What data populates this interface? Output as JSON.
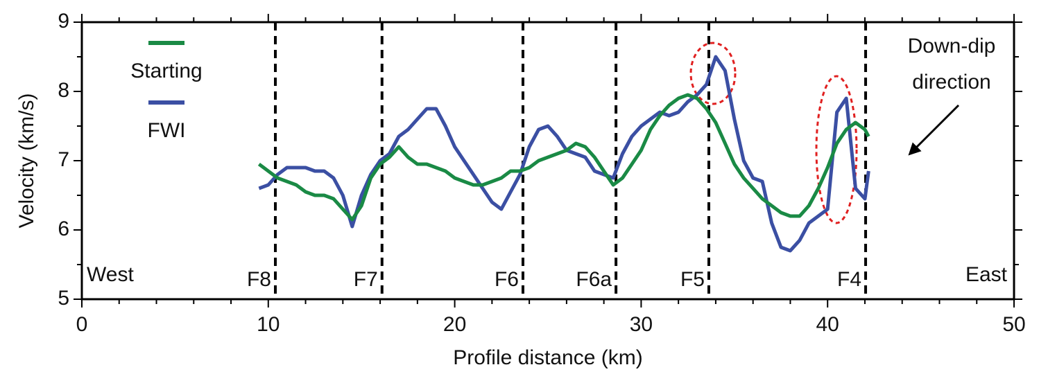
{
  "chart_data": {
    "type": "line",
    "xlabel": "Profile distance (km)",
    "ylabel": "Velocity (km/s)",
    "xlim": [
      0,
      50
    ],
    "ylim": [
      5,
      9
    ],
    "xticks": [
      0,
      10,
      20,
      30,
      40,
      50
    ],
    "yticks": [
      5,
      6,
      7,
      8,
      9
    ],
    "xticks_minor": [
      2,
      4,
      6,
      8,
      12,
      14,
      16,
      18,
      22,
      24,
      26,
      28,
      32,
      34,
      36,
      38,
      42,
      44,
      46,
      48
    ],
    "yticks_minor": [
      5.5,
      6.5,
      7.5,
      8.5
    ],
    "legend": "upper left",
    "x": [
      9.5,
      10,
      10.5,
      11,
      11.5,
      12,
      12.5,
      13,
      13.5,
      14,
      14.5,
      15,
      15.5,
      16,
      16.5,
      17,
      17.5,
      18,
      18.5,
      19,
      19.5,
      20,
      20.5,
      21,
      21.5,
      22,
      22.5,
      23,
      23.5,
      24,
      24.5,
      25,
      25.5,
      26,
      26.5,
      27,
      27.5,
      28,
      28.5,
      29,
      29.5,
      30,
      30.5,
      31,
      31.5,
      32,
      32.5,
      33,
      33.5,
      34,
      34.5,
      35,
      35.5,
      36,
      36.5,
      37,
      37.5,
      38,
      38.5,
      39,
      39.5,
      40,
      40.5,
      41,
      41.5,
      42,
      42.2
    ],
    "series": [
      {
        "name": "Starting",
        "color": "#1a8a45",
        "values": [
          6.95,
          6.85,
          6.75,
          6.7,
          6.65,
          6.55,
          6.5,
          6.5,
          6.45,
          6.3,
          6.15,
          6.35,
          6.75,
          6.95,
          7.05,
          7.2,
          7.05,
          6.95,
          6.95,
          6.9,
          6.85,
          6.75,
          6.7,
          6.65,
          6.65,
          6.7,
          6.75,
          6.85,
          6.85,
          6.9,
          7.0,
          7.05,
          7.1,
          7.15,
          7.25,
          7.2,
          7.05,
          6.85,
          6.65,
          6.75,
          6.95,
          7.15,
          7.45,
          7.65,
          7.8,
          7.9,
          7.95,
          7.9,
          7.75,
          7.55,
          7.25,
          6.95,
          6.75,
          6.6,
          6.45,
          6.35,
          6.25,
          6.2,
          6.2,
          6.35,
          6.6,
          6.9,
          7.25,
          7.45,
          7.55,
          7.45,
          7.35
        ]
      },
      {
        "name": "FWI",
        "color": "#3b4fa3",
        "values": [
          6.6,
          6.65,
          6.8,
          6.9,
          6.9,
          6.9,
          6.85,
          6.85,
          6.75,
          6.5,
          6.05,
          6.5,
          6.8,
          7.0,
          7.1,
          7.35,
          7.45,
          7.6,
          7.75,
          7.75,
          7.5,
          7.2,
          7.0,
          6.8,
          6.6,
          6.4,
          6.3,
          6.55,
          6.8,
          7.2,
          7.45,
          7.5,
          7.35,
          7.15,
          7.1,
          7.05,
          6.85,
          6.8,
          6.75,
          7.1,
          7.35,
          7.5,
          7.6,
          7.7,
          7.65,
          7.7,
          7.85,
          7.95,
          8.1,
          8.5,
          8.3,
          7.6,
          7.0,
          6.75,
          6.7,
          6.1,
          5.75,
          5.7,
          5.85,
          6.1,
          6.2,
          6.3,
          7.7,
          7.9,
          6.6,
          6.45,
          6.85
        ]
      }
    ],
    "faults": [
      {
        "label": "F8",
        "x": 10.38
      },
      {
        "label": "F7",
        "x": 16.1
      },
      {
        "label": "F6",
        "x": 23.66
      },
      {
        "label": "F6a",
        "x": 28.65
      },
      {
        "label": "F5",
        "x": 33.63
      },
      {
        "label": "F4",
        "x": 42.04
      }
    ],
    "annotations": [
      "West",
      "East",
      "Down-dip",
      "direction"
    ]
  }
}
